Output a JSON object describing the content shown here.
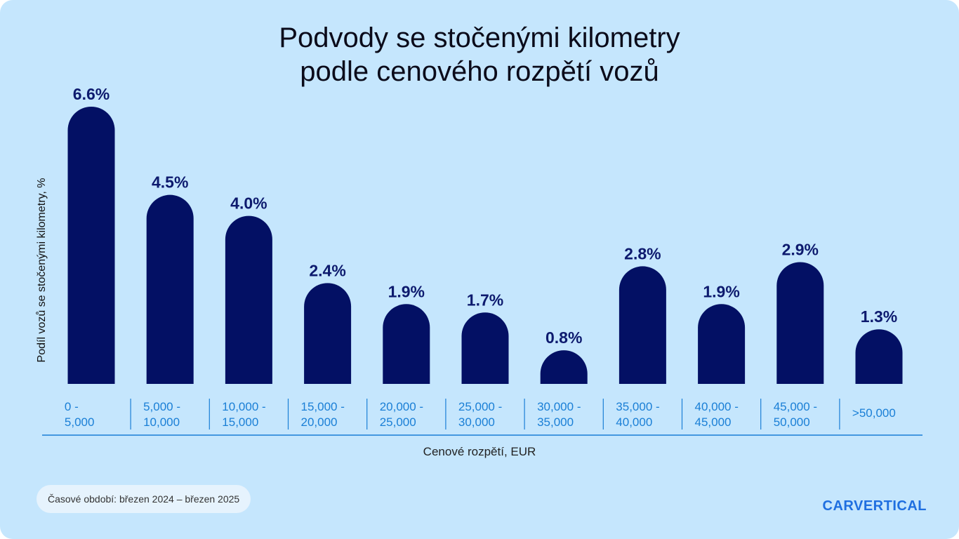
{
  "chart_data": {
    "type": "bar",
    "title_lines": [
      "Podvody se stočenými kilometry",
      "podle cenového rozpětí vozů"
    ],
    "ylabel": "Podíl vozů se stočenými kilometry, %",
    "xlabel": "Cenové rozpětí, EUR",
    "categories": [
      [
        "0 -",
        "5,000"
      ],
      [
        "5,000 -",
        "10,000"
      ],
      [
        "10,000 -",
        "15,000"
      ],
      [
        "15,000 -",
        "20,000"
      ],
      [
        "20,000 -",
        "25,000"
      ],
      [
        "25,000 -",
        "30,000"
      ],
      [
        "30,000 -",
        "35,000"
      ],
      [
        "35,000 -",
        "40,000"
      ],
      [
        "40,000 -",
        "45,000"
      ],
      [
        "45,000 -",
        "50,000"
      ],
      [
        ">50,000"
      ]
    ],
    "values": [
      6.6,
      4.5,
      4.0,
      2.4,
      1.9,
      1.7,
      0.8,
      2.8,
      1.9,
      2.9,
      1.3
    ],
    "data_labels": [
      "6.6%",
      "4.5%",
      "4.0%",
      "2.4%",
      "1.9%",
      "1.7%",
      "0.8%",
      "2.8%",
      "1.9%",
      "2.9%",
      "1.3%"
    ],
    "ylim": [
      0,
      6.6
    ],
    "bar_color": "#031064",
    "axis_color": "#1a7fd6"
  },
  "footer": {
    "period": "Časové období: březen 2024 – březen 2025",
    "brand": "CARVERTICAL"
  }
}
